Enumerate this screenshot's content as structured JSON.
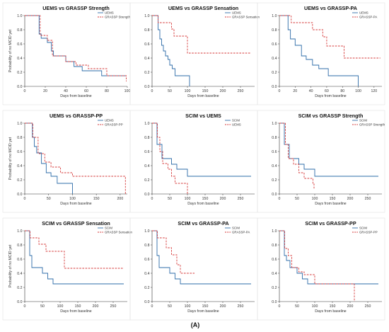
{
  "figure_label": "(A)",
  "colors": {
    "blue": "#2e6ca8",
    "red": "#d63a3a"
  },
  "chart_data": [
    {
      "type": "line",
      "title": "UEMS vs GRASSP Strength",
      "xlabel": "Days from baseline",
      "ylabel": "Probability of no MCID yet",
      "xlim": [
        0,
        100
      ],
      "xticks": [
        0,
        20,
        40,
        60,
        80,
        100
      ],
      "ylim": [
        0,
        1
      ],
      "yticks": [
        0.0,
        0.2,
        0.4,
        0.6,
        0.8,
        1.0
      ],
      "grid": false,
      "legend_position": "top-right",
      "step": true,
      "series": [
        {
          "name": "UEMS",
          "color": "#2e6ca8",
          "dashed": false,
          "points": [
            [
              0,
              1.0
            ],
            [
              13,
              1.0
            ],
            [
              14,
              0.74
            ],
            [
              16,
              0.68
            ],
            [
              22,
              0.62
            ],
            [
              26,
              0.5
            ],
            [
              28,
              0.43
            ],
            [
              40,
              0.35
            ],
            [
              48,
              0.28
            ],
            [
              56,
              0.22
            ],
            [
              75,
              0.15
            ],
            [
              98,
              0.15
            ]
          ]
        },
        {
          "name": "GRASSP Strength",
          "color": "#d63a3a",
          "dashed": true,
          "points": [
            [
              0,
              1.0
            ],
            [
              14,
              1.0
            ],
            [
              15,
              0.72
            ],
            [
              22,
              0.65
            ],
            [
              27,
              0.43
            ],
            [
              40,
              0.35
            ],
            [
              50,
              0.3
            ],
            [
              62,
              0.25
            ],
            [
              80,
              0.15
            ],
            [
              98,
              0.15
            ],
            [
              99,
              0.07
            ]
          ]
        }
      ]
    },
    {
      "type": "line",
      "title": "UEMS vs GRASSP Sensation",
      "xlabel": "Days from baseline",
      "ylabel": "",
      "xlim": [
        0,
        290
      ],
      "xticks": [
        0,
        50,
        100,
        150,
        200,
        250
      ],
      "ylim": [
        0,
        1
      ],
      "yticks": [
        0.0,
        0.2,
        0.4,
        0.6,
        0.8,
        1.0
      ],
      "grid": false,
      "legend_position": "top-right",
      "step": true,
      "series": [
        {
          "name": "UEMS",
          "color": "#2e6ca8",
          "dashed": false,
          "points": [
            [
              0,
              1.0
            ],
            [
              14,
              1.0
            ],
            [
              17,
              0.8
            ],
            [
              22,
              0.67
            ],
            [
              27,
              0.58
            ],
            [
              32,
              0.5
            ],
            [
              38,
              0.43
            ],
            [
              45,
              0.38
            ],
            [
              50,
              0.3
            ],
            [
              57,
              0.25
            ],
            [
              65,
              0.15
            ],
            [
              105,
              0.15
            ],
            [
              106,
              0.0
            ]
          ]
        },
        {
          "name": "GRASSP Sensation",
          "color": "#d63a3a",
          "dashed": true,
          "points": [
            [
              0,
              1.0
            ],
            [
              15,
              1.0
            ],
            [
              17,
              0.9
            ],
            [
              55,
              0.81
            ],
            [
              62,
              0.71
            ],
            [
              98,
              0.71
            ],
            [
              100,
              0.47
            ],
            [
              280,
              0.47
            ]
          ]
        }
      ]
    },
    {
      "type": "line",
      "title": "UEMS vs GRASSP-PA",
      "xlabel": "Days from baseline",
      "ylabel": "",
      "xlim": [
        0,
        130
      ],
      "xticks": [
        0,
        20,
        40,
        60,
        80,
        100,
        120
      ],
      "ylim": [
        0,
        1
      ],
      "yticks": [
        0.0,
        0.2,
        0.4,
        0.6,
        0.8,
        1.0
      ],
      "grid": false,
      "legend_position": "top-right",
      "step": true,
      "series": [
        {
          "name": "UEMS",
          "color": "#2e6ca8",
          "dashed": false,
          "points": [
            [
              0,
              1.0
            ],
            [
              10,
              1.0
            ],
            [
              11,
              0.8
            ],
            [
              14,
              0.67
            ],
            [
              20,
              0.58
            ],
            [
              28,
              0.43
            ],
            [
              34,
              0.38
            ],
            [
              42,
              0.3
            ],
            [
              50,
              0.25
            ],
            [
              62,
              0.15
            ],
            [
              98,
              0.15
            ],
            [
              100,
              0.0
            ]
          ]
        },
        {
          "name": "GRASSP-PA",
          "color": "#d63a3a",
          "dashed": true,
          "points": [
            [
              0,
              1.0
            ],
            [
              13,
              1.0
            ],
            [
              15,
              0.9
            ],
            [
              42,
              0.8
            ],
            [
              55,
              0.7
            ],
            [
              60,
              0.57
            ],
            [
              78,
              0.57
            ],
            [
              82,
              0.4
            ],
            [
              128,
              0.4
            ]
          ]
        }
      ]
    },
    {
      "type": "line",
      "title": "UEMS vs GRASSP-PP",
      "xlabel": "Days from baseline",
      "ylabel": "Probability of no MCID yet",
      "xlim": [
        0,
        215
      ],
      "xticks": [
        0,
        50,
        100,
        150,
        200
      ],
      "ylim": [
        0,
        1
      ],
      "yticks": [
        0.0,
        0.2,
        0.4,
        0.6,
        0.8,
        1.0
      ],
      "grid": false,
      "legend_position": "top-right",
      "step": true,
      "series": [
        {
          "name": "UEMS",
          "color": "#2e6ca8",
          "dashed": false,
          "points": [
            [
              0,
              1.0
            ],
            [
              14,
              1.0
            ],
            [
              16,
              0.8
            ],
            [
              20,
              0.67
            ],
            [
              25,
              0.58
            ],
            [
              35,
              0.43
            ],
            [
              45,
              0.3
            ],
            [
              55,
              0.25
            ],
            [
              68,
              0.15
            ],
            [
              98,
              0.15
            ],
            [
              100,
              0.0
            ]
          ]
        },
        {
          "name": "GRASSP-PP",
          "color": "#d63a3a",
          "dashed": true,
          "points": [
            [
              0,
              1.0
            ],
            [
              15,
              1.0
            ],
            [
              17,
              0.8
            ],
            [
              28,
              0.57
            ],
            [
              42,
              0.45
            ],
            [
              55,
              0.38
            ],
            [
              75,
              0.3
            ],
            [
              100,
              0.25
            ],
            [
              210,
              0.25
            ],
            [
              211,
              0.0
            ]
          ]
        }
      ]
    },
    {
      "type": "line",
      "title": "SCIM vs UEMS",
      "xlabel": "Days from baseline",
      "ylabel": "",
      "xlim": [
        0,
        290
      ],
      "xticks": [
        0,
        50,
        100,
        150,
        200,
        250
      ],
      "ylim": [
        0,
        1
      ],
      "yticks": [
        0.0,
        0.2,
        0.4,
        0.6,
        0.8,
        1.0
      ],
      "grid": false,
      "legend_position": "top-right",
      "step": true,
      "series": [
        {
          "name": "SCIM",
          "color": "#2e6ca8",
          "dashed": false,
          "points": [
            [
              0,
              1.0
            ],
            [
              12,
              1.0
            ],
            [
              14,
              0.7
            ],
            [
              28,
              0.5
            ],
            [
              55,
              0.42
            ],
            [
              70,
              0.35
            ],
            [
              100,
              0.25
            ],
            [
              280,
              0.25
            ]
          ]
        },
        {
          "name": "UEMS",
          "color": "#d63a3a",
          "dashed": true,
          "points": [
            [
              0,
              1.0
            ],
            [
              13,
              1.0
            ],
            [
              15,
              0.8
            ],
            [
              22,
              0.6
            ],
            [
              30,
              0.43
            ],
            [
              45,
              0.35
            ],
            [
              55,
              0.25
            ],
            [
              65,
              0.15
            ],
            [
              98,
              0.15
            ],
            [
              100,
              0.0
            ]
          ]
        }
      ]
    },
    {
      "type": "line",
      "title": "SCIM vs GRASSP Strength",
      "xlabel": "Days from baseline",
      "ylabel": "",
      "xlim": [
        0,
        290
      ],
      "xticks": [
        0,
        50,
        100,
        150,
        200,
        250
      ],
      "ylim": [
        0,
        1
      ],
      "yticks": [
        0.0,
        0.2,
        0.4,
        0.6,
        0.8,
        1.0
      ],
      "grid": false,
      "legend_position": "top-right",
      "step": true,
      "series": [
        {
          "name": "SCIM",
          "color": "#2e6ca8",
          "dashed": false,
          "points": [
            [
              0,
              1.0
            ],
            [
              12,
              1.0
            ],
            [
              14,
              0.7
            ],
            [
              28,
              0.5
            ],
            [
              55,
              0.42
            ],
            [
              70,
              0.35
            ],
            [
              100,
              0.25
            ],
            [
              280,
              0.25
            ]
          ]
        },
        {
          "name": "GRASSP Strength",
          "color": "#d63a3a",
          "dashed": true,
          "points": [
            [
              0,
              1.0
            ],
            [
              15,
              1.0
            ],
            [
              17,
              0.7
            ],
            [
              25,
              0.5
            ],
            [
              40,
              0.42
            ],
            [
              55,
              0.3
            ],
            [
              70,
              0.22
            ],
            [
              95,
              0.15
            ],
            [
              98,
              0.07
            ]
          ]
        }
      ]
    },
    {
      "type": "line",
      "title": "SCIM vs GRASSP Sensation",
      "xlabel": "Days from baseline",
      "ylabel": "Probability of no MCID yet",
      "xlim": [
        0,
        290
      ],
      "xticks": [
        0,
        50,
        100,
        150,
        200,
        250
      ],
      "ylim": [
        0,
        1
      ],
      "yticks": [
        0.0,
        0.2,
        0.4,
        0.6,
        0.8,
        1.0
      ],
      "grid": false,
      "legend_position": "top-right",
      "step": true,
      "series": [
        {
          "name": "SCIM",
          "color": "#2e6ca8",
          "dashed": false,
          "points": [
            [
              0,
              1.0
            ],
            [
              12,
              1.0
            ],
            [
              14,
              0.65
            ],
            [
              20,
              0.48
            ],
            [
              50,
              0.4
            ],
            [
              65,
              0.32
            ],
            [
              80,
              0.25
            ],
            [
              280,
              0.25
            ]
          ]
        },
        {
          "name": "GRASSP Sensation",
          "color": "#d63a3a",
          "dashed": true,
          "points": [
            [
              0,
              1.0
            ],
            [
              13,
              1.0
            ],
            [
              15,
              0.9
            ],
            [
              40,
              0.81
            ],
            [
              60,
              0.71
            ],
            [
              110,
              0.71
            ],
            [
              112,
              0.47
            ],
            [
              280,
              0.47
            ]
          ]
        }
      ]
    },
    {
      "type": "line",
      "title": "SCIM vs GRASSP-PA",
      "xlabel": "Days from baseline",
      "ylabel": "",
      "xlim": [
        0,
        290
      ],
      "xticks": [
        0,
        50,
        100,
        150,
        200,
        250
      ],
      "ylim": [
        0,
        1
      ],
      "yticks": [
        0.0,
        0.2,
        0.4,
        0.6,
        0.8,
        1.0
      ],
      "grid": false,
      "legend_position": "top-right",
      "step": true,
      "series": [
        {
          "name": "SCIM",
          "color": "#2e6ca8",
          "dashed": false,
          "points": [
            [
              0,
              1.0
            ],
            [
              12,
              1.0
            ],
            [
              14,
              0.65
            ],
            [
              20,
              0.48
            ],
            [
              50,
              0.4
            ],
            [
              65,
              0.32
            ],
            [
              80,
              0.25
            ],
            [
              280,
              0.25
            ]
          ]
        },
        {
          "name": "GRASSP-PA",
          "color": "#d63a3a",
          "dashed": true,
          "points": [
            [
              0,
              1.0
            ],
            [
              13,
              1.0
            ],
            [
              15,
              0.9
            ],
            [
              40,
              0.76
            ],
            [
              55,
              0.66
            ],
            [
              70,
              0.52
            ],
            [
              80,
              0.4
            ],
            [
              120,
              0.4
            ]
          ]
        }
      ]
    },
    {
      "type": "line",
      "title": "SCIM vs GRASSP-PP",
      "xlabel": "Days from baseline",
      "ylabel": "",
      "xlim": [
        0,
        290
      ],
      "xticks": [
        0,
        50,
        100,
        150,
        200,
        250
      ],
      "ylim": [
        0,
        1
      ],
      "yticks": [
        0.0,
        0.2,
        0.4,
        0.6,
        0.8,
        1.0
      ],
      "grid": false,
      "legend_position": "top-right",
      "step": true,
      "series": [
        {
          "name": "SCIM",
          "color": "#2e6ca8",
          "dashed": false,
          "points": [
            [
              0,
              1.0
            ],
            [
              12,
              1.0
            ],
            [
              14,
              0.65
            ],
            [
              20,
              0.58
            ],
            [
              30,
              0.48
            ],
            [
              50,
              0.4
            ],
            [
              65,
              0.32
            ],
            [
              80,
              0.25
            ],
            [
              280,
              0.25
            ]
          ]
        },
        {
          "name": "GRASSP-PP",
          "color": "#d63a3a",
          "dashed": true,
          "points": [
            [
              0,
              1.0
            ],
            [
              13,
              1.0
            ],
            [
              15,
              0.75
            ],
            [
              25,
              0.65
            ],
            [
              35,
              0.48
            ],
            [
              55,
              0.42
            ],
            [
              70,
              0.38
            ],
            [
              100,
              0.25
            ],
            [
              210,
              0.25
            ],
            [
              212,
              0.0
            ]
          ]
        }
      ]
    }
  ]
}
